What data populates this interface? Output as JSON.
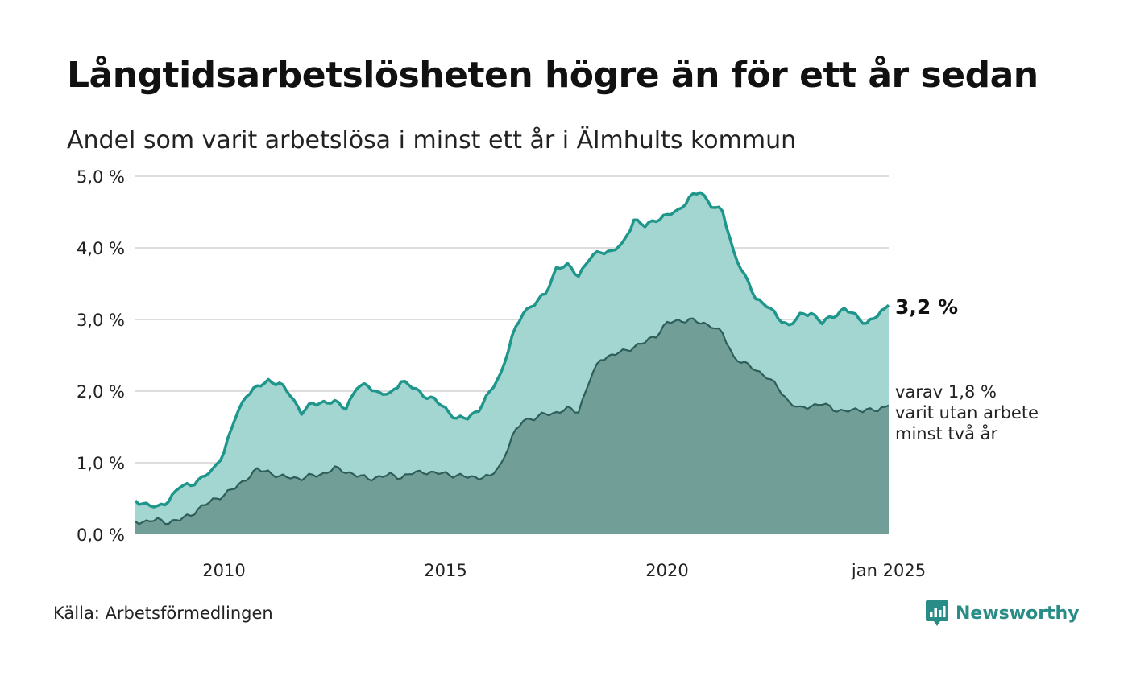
{
  "title": "Långtidsarbetslösheten högre än för ett år sedan",
  "subtitle": "Andel som varit arbetslösa i minst ett år i Älmhults kommun",
  "source": "Källa: Arbetsförmedlingen",
  "brand": "Newsworthy",
  "colors": {
    "line_total": "#1f968b",
    "fill_total": "#a3d6d0",
    "line_long": "#2e5e59",
    "fill_long": "#729e98",
    "grid": "#dddddd"
  },
  "end_labels": {
    "total": "3,2 %",
    "long_lines": [
      "varav 1,8 %",
      "varit utan arbete",
      "minst två år"
    ]
  },
  "chart_data": {
    "type": "area",
    "x_start": "2008-01",
    "x_end": "2025-01",
    "frequency": "monthly (values given at quarterly points, interpolated)",
    "ylim": [
      0,
      5
    ],
    "yticks": [
      {
        "value": 0,
        "label": "0,0 %"
      },
      {
        "value": 1,
        "label": "1,0 %"
      },
      {
        "value": 2,
        "label": "2,0 %"
      },
      {
        "value": 3,
        "label": "3,0 %"
      },
      {
        "value": 4,
        "label": "4,0 %"
      },
      {
        "value": 5,
        "label": "5,0 %"
      }
    ],
    "xticks": [
      {
        "value": "2010-01",
        "label": "2010"
      },
      {
        "value": "2015-01",
        "label": "2015"
      },
      {
        "value": "2020-01",
        "label": "2020"
      },
      {
        "value": "2025-01",
        "label": "jan 2025"
      }
    ],
    "grid": true,
    "legend": "none",
    "series": [
      {
        "id": "total",
        "points": [
          [
            "2008-01",
            0.47
          ],
          [
            "2008-04",
            0.42
          ],
          [
            "2008-07",
            0.37
          ],
          [
            "2008-10",
            0.48
          ],
          [
            "2009-01",
            0.66
          ],
          [
            "2009-04",
            0.7
          ],
          [
            "2009-07",
            0.78
          ],
          [
            "2009-10",
            0.9
          ],
          [
            "2010-01",
            1.15
          ],
          [
            "2010-04",
            1.62
          ],
          [
            "2010-07",
            1.95
          ],
          [
            "2010-10",
            2.05
          ],
          [
            "2011-01",
            2.15
          ],
          [
            "2011-04",
            2.1
          ],
          [
            "2011-07",
            1.95
          ],
          [
            "2011-10",
            1.7
          ],
          [
            "2012-01",
            1.82
          ],
          [
            "2012-04",
            1.85
          ],
          [
            "2012-07",
            1.84
          ],
          [
            "2012-10",
            1.77
          ],
          [
            "2013-01",
            2.05
          ],
          [
            "2013-04",
            2.08
          ],
          [
            "2013-07",
            1.97
          ],
          [
            "2013-10",
            1.95
          ],
          [
            "2014-01",
            2.15
          ],
          [
            "2014-04",
            2.05
          ],
          [
            "2014-07",
            1.95
          ],
          [
            "2014-10",
            1.88
          ],
          [
            "2015-01",
            1.75
          ],
          [
            "2015-04",
            1.62
          ],
          [
            "2015-07",
            1.62
          ],
          [
            "2015-10",
            1.75
          ],
          [
            "2016-01",
            1.98
          ],
          [
            "2016-04",
            2.25
          ],
          [
            "2016-07",
            2.75
          ],
          [
            "2016-10",
            3.1
          ],
          [
            "2017-01",
            3.22
          ],
          [
            "2017-04",
            3.35
          ],
          [
            "2017-07",
            3.72
          ],
          [
            "2017-10",
            3.75
          ],
          [
            "2018-01",
            3.62
          ],
          [
            "2018-04",
            3.85
          ],
          [
            "2018-07",
            3.95
          ],
          [
            "2018-10",
            3.95
          ],
          [
            "2019-01",
            4.05
          ],
          [
            "2019-04",
            4.4
          ],
          [
            "2019-07",
            4.3
          ],
          [
            "2019-10",
            4.4
          ],
          [
            "2020-01",
            4.45
          ],
          [
            "2020-04",
            4.52
          ],
          [
            "2020-07",
            4.7
          ],
          [
            "2020-10",
            4.78
          ],
          [
            "2021-01",
            4.6
          ],
          [
            "2021-04",
            4.5
          ],
          [
            "2021-07",
            3.95
          ],
          [
            "2021-10",
            3.6
          ],
          [
            "2022-01",
            3.3
          ],
          [
            "2022-04",
            3.2
          ],
          [
            "2022-07",
            3.02
          ],
          [
            "2022-10",
            2.92
          ],
          [
            "2023-01",
            3.05
          ],
          [
            "2023-04",
            3.1
          ],
          [
            "2023-07",
            2.95
          ],
          [
            "2023-10",
            3.05
          ],
          [
            "2024-01",
            3.15
          ],
          [
            "2024-04",
            3.05
          ],
          [
            "2024-07",
            2.95
          ],
          [
            "2024-10",
            3.05
          ],
          [
            "2025-01",
            3.2
          ]
        ]
      },
      {
        "id": "long",
        "points": [
          [
            "2008-01",
            0.18
          ],
          [
            "2008-04",
            0.18
          ],
          [
            "2008-07",
            0.2
          ],
          [
            "2008-10",
            0.17
          ],
          [
            "2009-01",
            0.2
          ],
          [
            "2009-04",
            0.28
          ],
          [
            "2009-07",
            0.38
          ],
          [
            "2009-10",
            0.48
          ],
          [
            "2010-01",
            0.55
          ],
          [
            "2010-04",
            0.65
          ],
          [
            "2010-07",
            0.78
          ],
          [
            "2010-10",
            0.9
          ],
          [
            "2011-01",
            0.88
          ],
          [
            "2011-04",
            0.8
          ],
          [
            "2011-07",
            0.8
          ],
          [
            "2011-10",
            0.78
          ],
          [
            "2012-01",
            0.82
          ],
          [
            "2012-04",
            0.85
          ],
          [
            "2012-07",
            0.92
          ],
          [
            "2012-10",
            0.88
          ],
          [
            "2013-01",
            0.82
          ],
          [
            "2013-04",
            0.78
          ],
          [
            "2013-07",
            0.8
          ],
          [
            "2013-10",
            0.83
          ],
          [
            "2014-01",
            0.8
          ],
          [
            "2014-04",
            0.85
          ],
          [
            "2014-07",
            0.88
          ],
          [
            "2014-10",
            0.85
          ],
          [
            "2015-01",
            0.85
          ],
          [
            "2015-04",
            0.82
          ],
          [
            "2015-07",
            0.8
          ],
          [
            "2015-10",
            0.8
          ],
          [
            "2016-01",
            0.8
          ],
          [
            "2016-04",
            0.98
          ],
          [
            "2016-07",
            1.35
          ],
          [
            "2016-10",
            1.6
          ],
          [
            "2017-01",
            1.62
          ],
          [
            "2017-04",
            1.68
          ],
          [
            "2017-07",
            1.7
          ],
          [
            "2017-10",
            1.75
          ],
          [
            "2018-01",
            1.72
          ],
          [
            "2018-04",
            2.15
          ],
          [
            "2018-07",
            2.45
          ],
          [
            "2018-10",
            2.5
          ],
          [
            "2019-01",
            2.55
          ],
          [
            "2019-04",
            2.62
          ],
          [
            "2019-07",
            2.68
          ],
          [
            "2019-10",
            2.78
          ],
          [
            "2020-01",
            2.95
          ],
          [
            "2020-04",
            2.98
          ],
          [
            "2020-07",
            3.0
          ],
          [
            "2020-10",
            2.95
          ],
          [
            "2021-01",
            2.92
          ],
          [
            "2021-04",
            2.8
          ],
          [
            "2021-07",
            2.48
          ],
          [
            "2021-10",
            2.38
          ],
          [
            "2022-01",
            2.3
          ],
          [
            "2022-04",
            2.2
          ],
          [
            "2022-07",
            2.05
          ],
          [
            "2022-10",
            1.85
          ],
          [
            "2023-01",
            1.75
          ],
          [
            "2023-04",
            1.8
          ],
          [
            "2023-07",
            1.82
          ],
          [
            "2023-10",
            1.75
          ],
          [
            "2024-01",
            1.72
          ],
          [
            "2024-04",
            1.73
          ],
          [
            "2024-07",
            1.75
          ],
          [
            "2024-10",
            1.72
          ],
          [
            "2025-01",
            1.8
          ]
        ]
      }
    ]
  }
}
